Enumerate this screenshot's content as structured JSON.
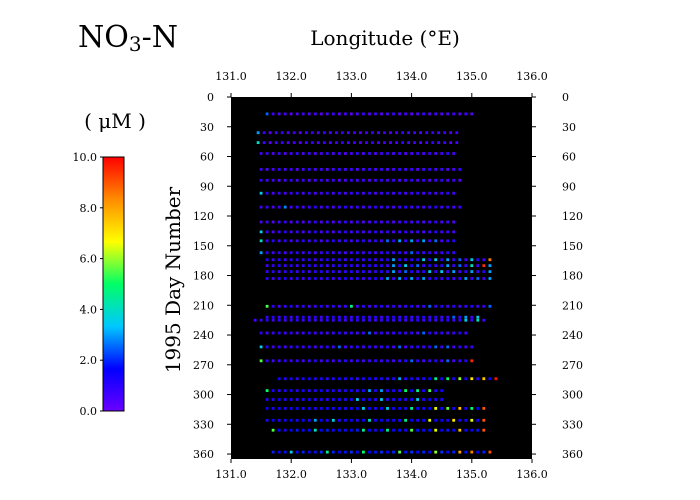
{
  "chart_data": {
    "type": "heatmap",
    "title_main": "NO",
    "title_sub": "3",
    "title_rest": "-N",
    "xlabel": "Longitude (°E)",
    "ylabel": "1995 Day Number",
    "unit_label": "( μM )",
    "xlim": [
      131.0,
      136.0
    ],
    "ylim": [
      0,
      365
    ],
    "xticks": [
      "131.0",
      "132.0",
      "133.0",
      "134.0",
      "135.0",
      "136.0"
    ],
    "yticks": [
      "0",
      "30",
      "60",
      "90",
      "120",
      "150",
      "180",
      "210",
      "240",
      "270",
      "300",
      "330",
      "360"
    ],
    "colorbar": {
      "min": 0,
      "max": 10,
      "tick_labels": [
        "0.0",
        "2.0",
        "4.0",
        "6.0",
        "8.0",
        "10.0"
      ],
      "colors": [
        "#6a00ff",
        "#0000ff",
        "#00c8ff",
        "#00ff66",
        "#ffff00",
        "#ff8c00",
        "#ff0000"
      ]
    },
    "grid": false,
    "background": "#000000",
    "cruises": [
      {
        "day": 17,
        "lon_start": 131.6,
        "lon_end": 135.0,
        "base": 0.5,
        "hot": [
          [
            131.6,
            2.5
          ]
        ]
      },
      {
        "day": 36,
        "lon_start": 131.45,
        "lon_end": 134.7,
        "base": 0.6,
        "hot": [
          [
            131.45,
            3.0
          ]
        ]
      },
      {
        "day": 46,
        "lon_start": 131.45,
        "lon_end": 134.7,
        "base": 0.6,
        "hot": [
          [
            131.45,
            4.0
          ]
        ]
      },
      {
        "day": 57,
        "lon_start": 131.5,
        "lon_end": 134.7,
        "base": 0.6,
        "hot": []
      },
      {
        "day": 73,
        "lon_start": 131.5,
        "lon_end": 134.8,
        "base": 0.6,
        "hot": []
      },
      {
        "day": 84,
        "lon_start": 131.5,
        "lon_end": 134.8,
        "base": 0.6,
        "hot": []
      },
      {
        "day": 97,
        "lon_start": 131.5,
        "lon_end": 134.7,
        "base": 0.7,
        "hot": [
          [
            131.5,
            3.5
          ]
        ]
      },
      {
        "day": 111,
        "lon_start": 131.5,
        "lon_end": 134.8,
        "base": 0.7,
        "hot": [
          [
            131.9,
            2.8
          ]
        ]
      },
      {
        "day": 126,
        "lon_start": 131.5,
        "lon_end": 134.7,
        "base": 0.6,
        "hot": []
      },
      {
        "day": 136,
        "lon_start": 131.5,
        "lon_end": 134.7,
        "base": 0.7,
        "hot": [
          [
            131.5,
            3.5
          ]
        ]
      },
      {
        "day": 145,
        "lon_start": 131.5,
        "lon_end": 134.7,
        "base": 0.8,
        "hot": [
          [
            131.5,
            4.0
          ],
          [
            133.6,
            2.5
          ],
          [
            133.8,
            3.0
          ],
          [
            134.0,
            3.0
          ],
          [
            134.2,
            3.0
          ],
          [
            134.4,
            2.5
          ]
        ]
      },
      {
        "day": 157,
        "lon_start": 131.5,
        "lon_end": 134.7,
        "base": 0.8,
        "hot": [
          [
            131.5,
            3.0
          ],
          [
            134.0,
            2.5
          ]
        ]
      },
      {
        "day": 164,
        "lon_start": 131.6,
        "lon_end": 135.3,
        "base": 0.9,
        "hot": [
          [
            133.7,
            3.0
          ],
          [
            134.2,
            3.5
          ],
          [
            134.4,
            3.5
          ],
          [
            134.6,
            3.0
          ],
          [
            134.8,
            2.5
          ],
          [
            135.0,
            3.5
          ],
          [
            135.3,
            8.5
          ]
        ]
      },
      {
        "day": 170,
        "lon_start": 131.6,
        "lon_end": 135.3,
        "base": 0.9,
        "hot": [
          [
            133.7,
            3.0
          ],
          [
            133.9,
            3.5
          ],
          [
            134.1,
            2.5
          ],
          [
            134.6,
            3.0
          ],
          [
            134.8,
            2.5
          ],
          [
            135.0,
            4.0
          ],
          [
            135.2,
            9.5
          ],
          [
            135.3,
            3.0
          ]
        ]
      },
      {
        "day": 176,
        "lon_start": 131.6,
        "lon_end": 135.3,
        "base": 0.9,
        "hot": [
          [
            133.7,
            3.0
          ],
          [
            133.9,
            2.5
          ],
          [
            134.3,
            3.5
          ],
          [
            134.5,
            3.5
          ],
          [
            134.7,
            3.0
          ],
          [
            135.0,
            3.0
          ],
          [
            135.3,
            3.0
          ]
        ]
      },
      {
        "day": 183,
        "lon_start": 131.6,
        "lon_end": 135.3,
        "base": 0.9,
        "hot": [
          [
            133.6,
            3.0
          ],
          [
            133.8,
            3.0
          ],
          [
            134.0,
            3.0
          ],
          [
            134.2,
            3.0
          ],
          [
            134.9,
            3.0
          ],
          [
            135.1,
            2.5
          ],
          [
            135.3,
            3.0
          ]
        ]
      },
      {
        "day": 211,
        "lon_start": 131.6,
        "lon_end": 135.3,
        "base": 0.8,
        "hot": [
          [
            131.6,
            5.5
          ],
          [
            133.0,
            4.5
          ],
          [
            134.3,
            2.5
          ],
          [
            135.3,
            2.5
          ]
        ]
      },
      {
        "day": 222,
        "lon_start": 131.6,
        "lon_end": 135.1,
        "base": 0.8,
        "hot": [
          [
            134.7,
            2.5
          ],
          [
            134.9,
            3.0
          ],
          [
            135.1,
            3.5
          ]
        ]
      },
      {
        "day": 225,
        "lon_start": 131.4,
        "lon_end": 135.2,
        "base": 0.8,
        "hot": [
          [
            134.9,
            3.5
          ],
          [
            135.1,
            4.0
          ]
        ]
      },
      {
        "day": 238,
        "lon_start": 131.5,
        "lon_end": 134.9,
        "base": 0.8,
        "hot": [
          [
            133.3,
            2.5
          ],
          [
            134.2,
            2.5
          ]
        ]
      },
      {
        "day": 252,
        "lon_start": 131.5,
        "lon_end": 135.0,
        "base": 0.8,
        "hot": [
          [
            131.5,
            3.5
          ],
          [
            132.8,
            2.5
          ],
          [
            133.8,
            2.5
          ],
          [
            134.4,
            2.5
          ],
          [
            134.6,
            2.5
          ]
        ]
      },
      {
        "day": 266,
        "lon_start": 131.5,
        "lon_end": 135.0,
        "base": 0.8,
        "hot": [
          [
            131.5,
            5.5
          ],
          [
            134.0,
            2.5
          ],
          [
            134.6,
            2.5
          ],
          [
            135.0,
            9.5
          ]
        ]
      },
      {
        "day": 284,
        "lon_start": 131.8,
        "lon_end": 135.4,
        "base": 1.2,
        "hot": [
          [
            133.8,
            3.0
          ],
          [
            134.4,
            4.5
          ],
          [
            134.6,
            5.0
          ],
          [
            134.8,
            6.0
          ],
          [
            135.0,
            7.0
          ],
          [
            135.2,
            7.5
          ],
          [
            135.4,
            9.8
          ]
        ]
      },
      {
        "day": 296,
        "lon_start": 131.6,
        "lon_end": 134.5,
        "base": 1.2,
        "hot": [
          [
            131.6,
            5.0
          ],
          [
            133.3,
            3.0
          ],
          [
            133.5,
            3.0
          ],
          [
            133.9,
            5.0
          ],
          [
            134.1,
            4.5
          ],
          [
            134.3,
            5.5
          ]
        ]
      },
      {
        "day": 305,
        "lon_start": 131.6,
        "lon_end": 134.5,
        "base": 1.2,
        "hot": [
          [
            133.1,
            3.5
          ],
          [
            133.5,
            3.5
          ],
          [
            134.1,
            3.5
          ]
        ]
      },
      {
        "day": 314,
        "lon_start": 131.6,
        "lon_end": 135.2,
        "base": 1.4,
        "hot": [
          [
            133.2,
            3.5
          ],
          [
            133.6,
            3.5
          ],
          [
            134.0,
            4.5
          ],
          [
            134.4,
            6.5
          ],
          [
            134.6,
            5.5
          ],
          [
            134.8,
            7.5
          ],
          [
            135.0,
            5.0
          ],
          [
            135.2,
            9.0
          ]
        ]
      },
      {
        "day": 326,
        "lon_start": 131.6,
        "lon_end": 135.2,
        "base": 1.4,
        "hot": [
          [
            132.4,
            3.0
          ],
          [
            132.7,
            3.5
          ],
          [
            133.3,
            4.0
          ],
          [
            133.9,
            4.5
          ],
          [
            134.3,
            6.5
          ],
          [
            134.7,
            7.0
          ],
          [
            135.0,
            6.5
          ],
          [
            135.2,
            9.0
          ]
        ]
      },
      {
        "day": 336,
        "lon_start": 131.7,
        "lon_end": 135.2,
        "base": 1.6,
        "hot": [
          [
            131.7,
            5.5
          ],
          [
            132.4,
            4.0
          ],
          [
            133.2,
            4.5
          ],
          [
            133.6,
            4.5
          ],
          [
            134.0,
            5.5
          ],
          [
            134.4,
            6.5
          ],
          [
            134.8,
            7.5
          ],
          [
            135.2,
            9.0
          ]
        ]
      },
      {
        "day": 358,
        "lon_start": 131.7,
        "lon_end": 135.3,
        "base": 1.8,
        "hot": [
          [
            132.0,
            3.5
          ],
          [
            132.6,
            4.5
          ],
          [
            133.2,
            5.0
          ],
          [
            133.8,
            5.5
          ],
          [
            134.4,
            6.0
          ],
          [
            134.8,
            8.0
          ],
          [
            135.0,
            8.5
          ],
          [
            135.3,
            9.0
          ]
        ]
      }
    ]
  }
}
